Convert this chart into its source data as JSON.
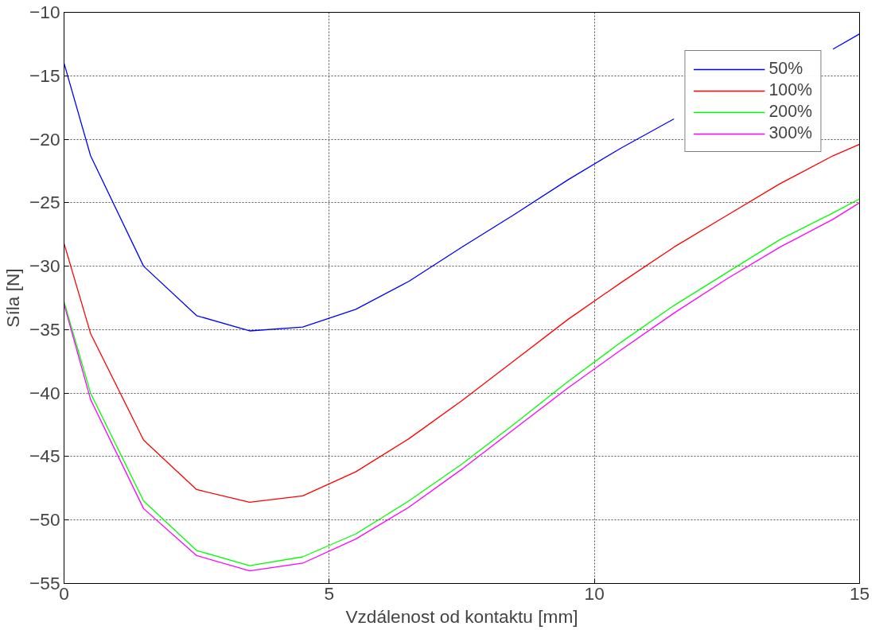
{
  "chart_data": {
    "type": "line",
    "xlabel": "Vzdálenost od kontaktu [mm]",
    "ylabel": "Síla [N]",
    "x": [
      0,
      0.5,
      1.5,
      2.5,
      3.5,
      4.5,
      5.5,
      6.5,
      7.5,
      8.5,
      9.5,
      10.5,
      11.5,
      12.5,
      13.5,
      14.5,
      15
    ],
    "series": [
      {
        "name": "50%",
        "color": "#0000ff",
        "values": [
          -14.0,
          -21.3,
          -30.0,
          -33.9,
          -35.1,
          -34.8,
          -33.4,
          -31.2,
          -28.5,
          -25.9,
          -23.2,
          -20.7,
          -18.4,
          null,
          null,
          -12.9,
          -11.7
        ]
      },
      {
        "name": "100%",
        "color": "#ff0000",
        "values": [
          -28.2,
          -35.3,
          -43.7,
          -47.6,
          -48.6,
          -48.1,
          -46.2,
          -43.6,
          -40.6,
          -37.4,
          -34.2,
          -31.3,
          -28.5,
          -26.0,
          -23.5,
          -21.3,
          -20.4
        ]
      },
      {
        "name": "200%",
        "color": "#00ff00",
        "values": [
          -32.8,
          -40.0,
          -48.5,
          -52.4,
          -53.6,
          -52.9,
          -51.1,
          -48.5,
          -45.6,
          -42.4,
          -39.1,
          -36.0,
          -33.1,
          -30.5,
          -27.9,
          -25.8,
          -24.7
        ]
      },
      {
        "name": "300%",
        "color": "#ff00ff",
        "values": [
          -33.0,
          -40.5,
          -49.1,
          -52.8,
          -54.0,
          -53.4,
          -51.5,
          -49.0,
          -46.0,
          -42.8,
          -39.6,
          -36.6,
          -33.7,
          -31.0,
          -28.5,
          -26.3,
          -25.0
        ]
      }
    ],
    "xlim": [
      0,
      15
    ],
    "xticks": [
      0,
      5,
      10,
      15
    ],
    "ylim": [
      -55,
      -10
    ],
    "yticks": [
      -55,
      -50,
      -45,
      -40,
      -35,
      -30,
      -25,
      -20,
      -15,
      -10
    ],
    "grid": true,
    "legend": "top right",
    "line_style": "solid",
    "marker": "none"
  }
}
